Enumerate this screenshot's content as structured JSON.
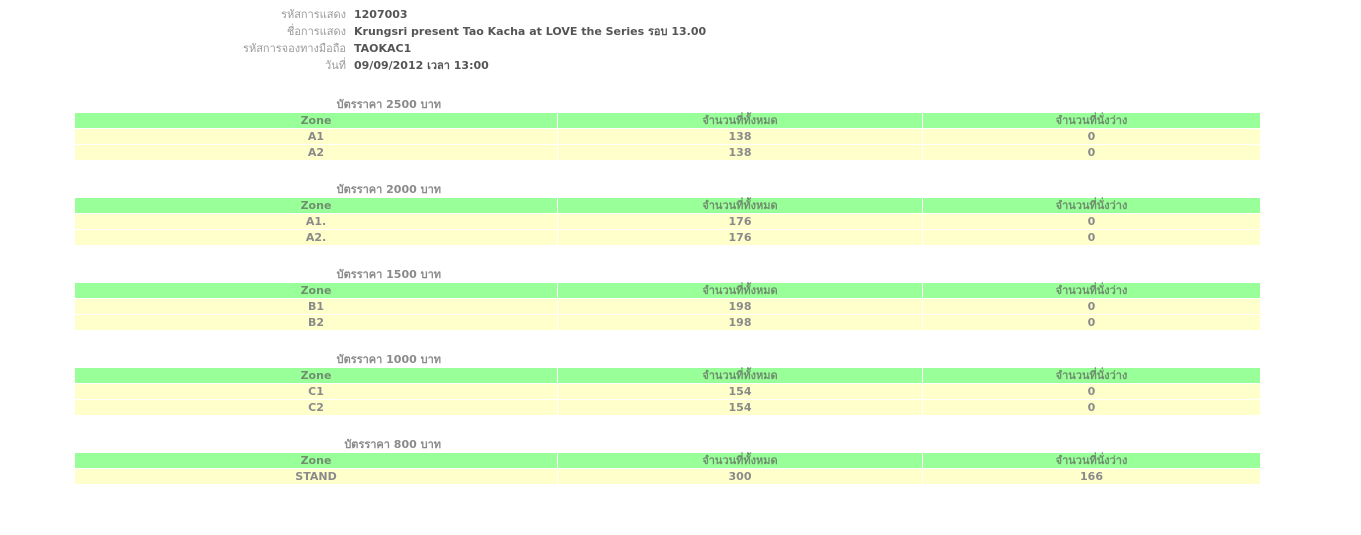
{
  "info": [
    {
      "label": "รหัสการแสดง",
      "value": "1207003"
    },
    {
      "label": "ชื่อการแสดง",
      "value": "Krungsri present Tao Kacha at LOVE the Series รอบ 13.00"
    },
    {
      "label": "รหัสการจองทางมือถือ",
      "value": "TAOKAC1"
    },
    {
      "label": "วันที่",
      "value": "09/09/2012 เวลา 13:00"
    }
  ],
  "headers": {
    "zone": "Zone",
    "total": "จำนวนที่ทั้งหมด",
    "available": "จำนวนที่นั่งว่าง"
  },
  "sections": [
    {
      "caption": "บัตรราคา 2500 บาท",
      "rows": [
        {
          "zone": "A1",
          "total": "138",
          "available": "0"
        },
        {
          "zone": "A2",
          "total": "138",
          "available": "0"
        }
      ]
    },
    {
      "caption": "บัตรราคา 2000 บาท",
      "rows": [
        {
          "zone": "A1.",
          "total": "176",
          "available": "0"
        },
        {
          "zone": "A2.",
          "total": "176",
          "available": "0"
        }
      ]
    },
    {
      "caption": "บัตรราคา 1500 บาท",
      "rows": [
        {
          "zone": "B1",
          "total": "198",
          "available": "0"
        },
        {
          "zone": "B2",
          "total": "198",
          "available": "0"
        }
      ]
    },
    {
      "caption": "บัตรราคา 1000 บาท",
      "rows": [
        {
          "zone": "C1",
          "total": "154",
          "available": "0"
        },
        {
          "zone": "C2",
          "total": "154",
          "available": "0"
        }
      ]
    },
    {
      "caption": "บัตรราคา 800 บาท",
      "rows": [
        {
          "zone": "STAND",
          "total": "300",
          "available": "166"
        }
      ]
    }
  ],
  "colors": {
    "header_bg": "#99ff99",
    "row_bg": "#ffffcc"
  }
}
